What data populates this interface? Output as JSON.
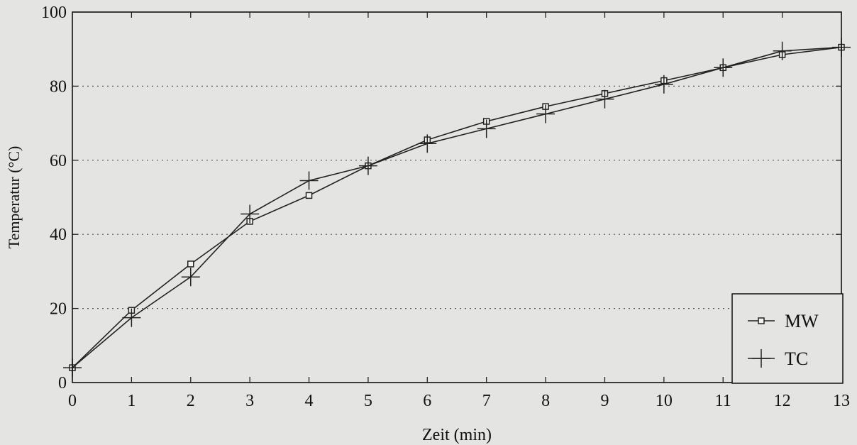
{
  "chart_data": {
    "type": "line",
    "xlabel": "Zeit (min)",
    "ylabel": "Temperatur (°C)",
    "xlim": [
      0,
      13
    ],
    "ylim": [
      0,
      100
    ],
    "xticks": [
      0,
      1,
      2,
      3,
      4,
      5,
      6,
      7,
      8,
      9,
      10,
      11,
      12,
      13
    ],
    "yticks": [
      0,
      20,
      40,
      60,
      80,
      100
    ],
    "grid": "horizontal dotted",
    "legend_position": "bottom-right",
    "series": [
      {
        "name": "MW",
        "marker": "open-square",
        "x": [
          0,
          1,
          2,
          3,
          4,
          5,
          6,
          7,
          8,
          9,
          10,
          11,
          12,
          13
        ],
        "y": [
          4,
          19.5,
          32,
          43.5,
          50.5,
          58.5,
          65.5,
          70.5,
          74.5,
          78,
          81.5,
          85,
          88.5,
          90.5
        ]
      },
      {
        "name": "TC",
        "marker": "plus",
        "x": [
          0,
          1,
          2,
          3,
          4,
          5,
          6,
          7,
          8,
          9,
          10,
          11,
          12,
          13
        ],
        "y": [
          4,
          17.5,
          28.5,
          45.5,
          54.5,
          58.5,
          64.5,
          68.5,
          72.5,
          76.5,
          80.5,
          85,
          89.5,
          90.5
        ]
      }
    ],
    "colors": {
      "line": "#222222",
      "background": "#e4e4e2",
      "grid": "#555555"
    }
  }
}
